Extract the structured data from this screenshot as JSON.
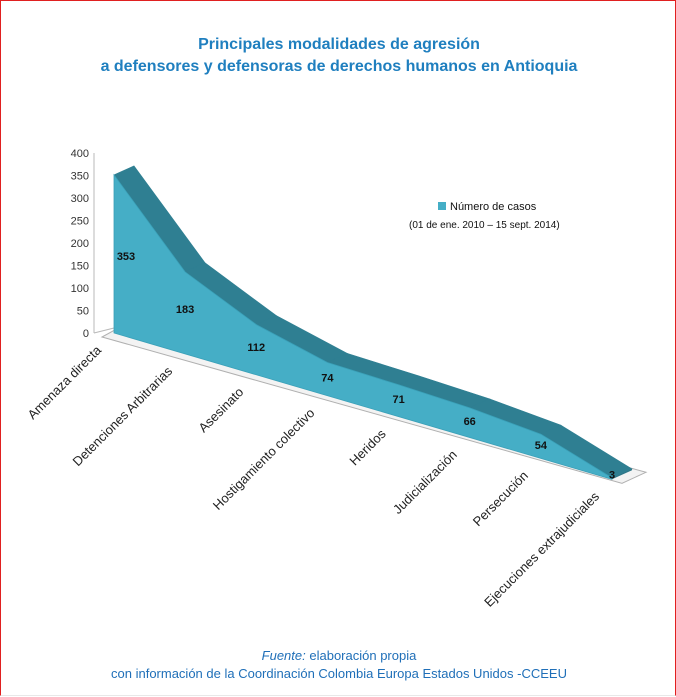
{
  "chart_data": {
    "type": "area",
    "style": "3d",
    "title_lines": [
      "Principales modalidades de agresión",
      "a defensores y defensoras de derechos humanos en Antioquia"
    ],
    "categories": [
      "Amenaza directa",
      "Detenciones Arbitrarias",
      "Asesinato",
      "Hostigamiento colectivo",
      "Heridos",
      "Judicialización",
      "Persecución",
      "Ejecuciones extrajudiciales"
    ],
    "series": [
      {
        "name": "Número de casos",
        "values": [
          353,
          183,
          112,
          74,
          71,
          66,
          54,
          3
        ],
        "color": "#45aec6"
      }
    ],
    "legend_note": "(01 de ene. 2010  – 15 sept. 2014)",
    "legend_position": "top-right",
    "y_ticks": [
      "0",
      "50",
      "100",
      "150",
      "200",
      "250",
      "300",
      "350",
      "400"
    ],
    "ylim": [
      0,
      400
    ],
    "grid": false,
    "data_labels": true
  },
  "footer": {
    "source_label": "Fuente:",
    "source_text": " elaboración propia",
    "line2": "con información de la Coordinación Colombia Europa Estados Unidos -CCEEU"
  }
}
